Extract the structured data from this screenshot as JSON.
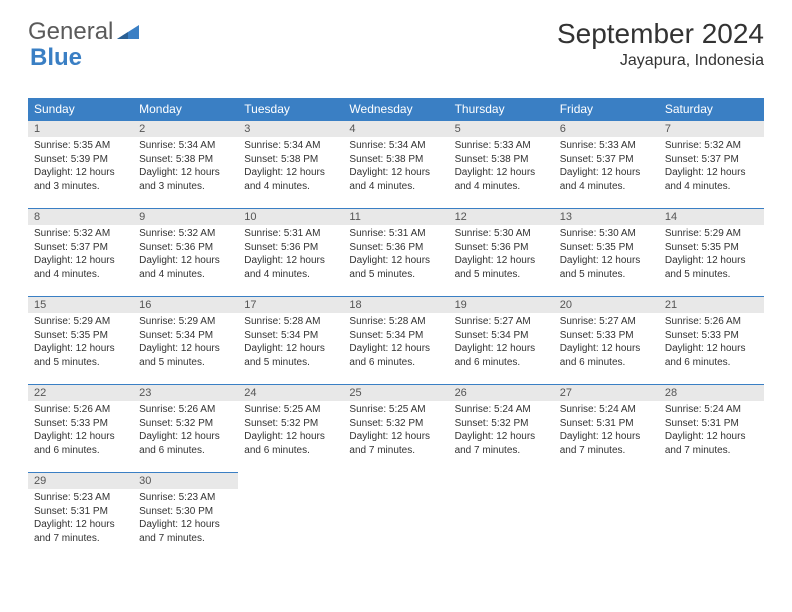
{
  "logo": {
    "part1": "General",
    "part2": "Blue"
  },
  "title": "September 2024",
  "location": "Jayapura, Indonesia",
  "colors": {
    "header_bg": "#3a7fc4",
    "header_text": "#ffffff",
    "daynum_bg": "#e8e8e8",
    "text": "#333333",
    "border": "#3a7fc4"
  },
  "dayNames": [
    "Sunday",
    "Monday",
    "Tuesday",
    "Wednesday",
    "Thursday",
    "Friday",
    "Saturday"
  ],
  "weeks": [
    [
      {
        "n": "1",
        "sr": "Sunrise: 5:35 AM",
        "ss": "Sunset: 5:39 PM",
        "dl1": "Daylight: 12 hours",
        "dl2": "and 3 minutes."
      },
      {
        "n": "2",
        "sr": "Sunrise: 5:34 AM",
        "ss": "Sunset: 5:38 PM",
        "dl1": "Daylight: 12 hours",
        "dl2": "and 3 minutes."
      },
      {
        "n": "3",
        "sr": "Sunrise: 5:34 AM",
        "ss": "Sunset: 5:38 PM",
        "dl1": "Daylight: 12 hours",
        "dl2": "and 4 minutes."
      },
      {
        "n": "4",
        "sr": "Sunrise: 5:34 AM",
        "ss": "Sunset: 5:38 PM",
        "dl1": "Daylight: 12 hours",
        "dl2": "and 4 minutes."
      },
      {
        "n": "5",
        "sr": "Sunrise: 5:33 AM",
        "ss": "Sunset: 5:38 PM",
        "dl1": "Daylight: 12 hours",
        "dl2": "and 4 minutes."
      },
      {
        "n": "6",
        "sr": "Sunrise: 5:33 AM",
        "ss": "Sunset: 5:37 PM",
        "dl1": "Daylight: 12 hours",
        "dl2": "and 4 minutes."
      },
      {
        "n": "7",
        "sr": "Sunrise: 5:32 AM",
        "ss": "Sunset: 5:37 PM",
        "dl1": "Daylight: 12 hours",
        "dl2": "and 4 minutes."
      }
    ],
    [
      {
        "n": "8",
        "sr": "Sunrise: 5:32 AM",
        "ss": "Sunset: 5:37 PM",
        "dl1": "Daylight: 12 hours",
        "dl2": "and 4 minutes."
      },
      {
        "n": "9",
        "sr": "Sunrise: 5:32 AM",
        "ss": "Sunset: 5:36 PM",
        "dl1": "Daylight: 12 hours",
        "dl2": "and 4 minutes."
      },
      {
        "n": "10",
        "sr": "Sunrise: 5:31 AM",
        "ss": "Sunset: 5:36 PM",
        "dl1": "Daylight: 12 hours",
        "dl2": "and 4 minutes."
      },
      {
        "n": "11",
        "sr": "Sunrise: 5:31 AM",
        "ss": "Sunset: 5:36 PM",
        "dl1": "Daylight: 12 hours",
        "dl2": "and 5 minutes."
      },
      {
        "n": "12",
        "sr": "Sunrise: 5:30 AM",
        "ss": "Sunset: 5:36 PM",
        "dl1": "Daylight: 12 hours",
        "dl2": "and 5 minutes."
      },
      {
        "n": "13",
        "sr": "Sunrise: 5:30 AM",
        "ss": "Sunset: 5:35 PM",
        "dl1": "Daylight: 12 hours",
        "dl2": "and 5 minutes."
      },
      {
        "n": "14",
        "sr": "Sunrise: 5:29 AM",
        "ss": "Sunset: 5:35 PM",
        "dl1": "Daylight: 12 hours",
        "dl2": "and 5 minutes."
      }
    ],
    [
      {
        "n": "15",
        "sr": "Sunrise: 5:29 AM",
        "ss": "Sunset: 5:35 PM",
        "dl1": "Daylight: 12 hours",
        "dl2": "and 5 minutes."
      },
      {
        "n": "16",
        "sr": "Sunrise: 5:29 AM",
        "ss": "Sunset: 5:34 PM",
        "dl1": "Daylight: 12 hours",
        "dl2": "and 5 minutes."
      },
      {
        "n": "17",
        "sr": "Sunrise: 5:28 AM",
        "ss": "Sunset: 5:34 PM",
        "dl1": "Daylight: 12 hours",
        "dl2": "and 5 minutes."
      },
      {
        "n": "18",
        "sr": "Sunrise: 5:28 AM",
        "ss": "Sunset: 5:34 PM",
        "dl1": "Daylight: 12 hours",
        "dl2": "and 6 minutes."
      },
      {
        "n": "19",
        "sr": "Sunrise: 5:27 AM",
        "ss": "Sunset: 5:34 PM",
        "dl1": "Daylight: 12 hours",
        "dl2": "and 6 minutes."
      },
      {
        "n": "20",
        "sr": "Sunrise: 5:27 AM",
        "ss": "Sunset: 5:33 PM",
        "dl1": "Daylight: 12 hours",
        "dl2": "and 6 minutes."
      },
      {
        "n": "21",
        "sr": "Sunrise: 5:26 AM",
        "ss": "Sunset: 5:33 PM",
        "dl1": "Daylight: 12 hours",
        "dl2": "and 6 minutes."
      }
    ],
    [
      {
        "n": "22",
        "sr": "Sunrise: 5:26 AM",
        "ss": "Sunset: 5:33 PM",
        "dl1": "Daylight: 12 hours",
        "dl2": "and 6 minutes."
      },
      {
        "n": "23",
        "sr": "Sunrise: 5:26 AM",
        "ss": "Sunset: 5:32 PM",
        "dl1": "Daylight: 12 hours",
        "dl2": "and 6 minutes."
      },
      {
        "n": "24",
        "sr": "Sunrise: 5:25 AM",
        "ss": "Sunset: 5:32 PM",
        "dl1": "Daylight: 12 hours",
        "dl2": "and 6 minutes."
      },
      {
        "n": "25",
        "sr": "Sunrise: 5:25 AM",
        "ss": "Sunset: 5:32 PM",
        "dl1": "Daylight: 12 hours",
        "dl2": "and 7 minutes."
      },
      {
        "n": "26",
        "sr": "Sunrise: 5:24 AM",
        "ss": "Sunset: 5:32 PM",
        "dl1": "Daylight: 12 hours",
        "dl2": "and 7 minutes."
      },
      {
        "n": "27",
        "sr": "Sunrise: 5:24 AM",
        "ss": "Sunset: 5:31 PM",
        "dl1": "Daylight: 12 hours",
        "dl2": "and 7 minutes."
      },
      {
        "n": "28",
        "sr": "Sunrise: 5:24 AM",
        "ss": "Sunset: 5:31 PM",
        "dl1": "Daylight: 12 hours",
        "dl2": "and 7 minutes."
      }
    ],
    [
      {
        "n": "29",
        "sr": "Sunrise: 5:23 AM",
        "ss": "Sunset: 5:31 PM",
        "dl1": "Daylight: 12 hours",
        "dl2": "and 7 minutes."
      },
      {
        "n": "30",
        "sr": "Sunrise: 5:23 AM",
        "ss": "Sunset: 5:30 PM",
        "dl1": "Daylight: 12 hours",
        "dl2": "and 7 minutes."
      },
      null,
      null,
      null,
      null,
      null
    ]
  ]
}
